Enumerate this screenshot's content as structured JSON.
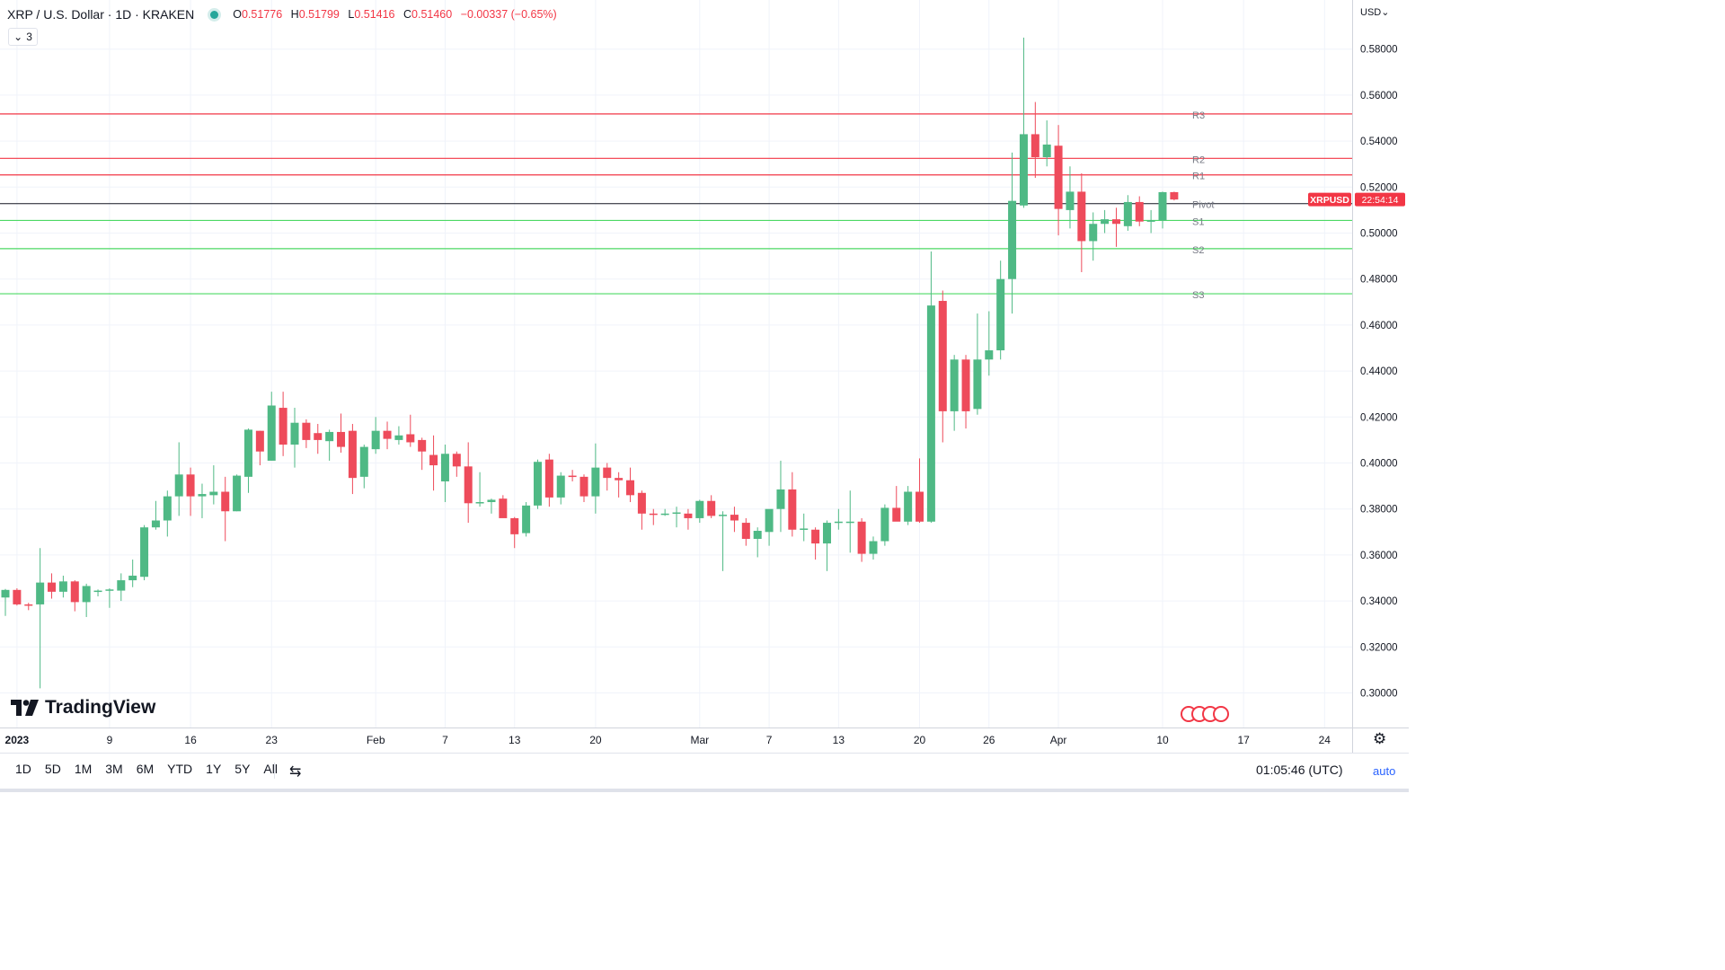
{
  "header": {
    "title": "XRP / U.S. Dollar · 1D · KRAKEN",
    "ohlc": [
      {
        "key": "O",
        "value": "0.51776"
      },
      {
        "key": "H",
        "value": "0.51799"
      },
      {
        "key": "L",
        "value": "0.51416"
      },
      {
        "key": "C",
        "value": "0.51460"
      }
    ],
    "change": "−0.00337 (−0.65%)",
    "collapse_count": "3"
  },
  "currency": "USD",
  "logo_text": "TradingView",
  "price_tag": {
    "symbol": "XRPUSD",
    "countdown": "22:54:14"
  },
  "toolbar": {
    "ranges": [
      "1D",
      "5D",
      "1M",
      "3M",
      "6M",
      "YTD",
      "1Y",
      "5Y",
      "All"
    ],
    "clock": "01:05:46 (UTC)",
    "auto_label": "auto"
  },
  "colors": {
    "up": "#4fb985",
    "down": "#ee4b5b",
    "resistance": "#f23645",
    "support": "#4cd964",
    "pivot": "#131722"
  },
  "chart_data": {
    "type": "candlestick",
    "symbol": "XRPUSD",
    "interval": "1D",
    "ylim": [
      0.29,
      0.59
    ],
    "y_ticks": [
      "0.30000",
      "0.32000",
      "0.34000",
      "0.36000",
      "0.38000",
      "0.40000",
      "0.42000",
      "0.44000",
      "0.46000",
      "0.48000",
      "0.50000",
      "0.52000",
      "0.54000",
      "0.56000",
      "0.58000"
    ],
    "x_ticks": [
      {
        "label": "2023",
        "index": 1
      },
      {
        "label": "9",
        "index": 9
      },
      {
        "label": "16",
        "index": 16
      },
      {
        "label": "23",
        "index": 23
      },
      {
        "label": "Feb",
        "index": 32
      },
      {
        "label": "7",
        "index": 38
      },
      {
        "label": "13",
        "index": 44
      },
      {
        "label": "20",
        "index": 51
      },
      {
        "label": "Mar",
        "index": 60
      },
      {
        "label": "7",
        "index": 66
      },
      {
        "label": "13",
        "index": 72
      },
      {
        "label": "20",
        "index": 79
      },
      {
        "label": "26",
        "index": 85
      },
      {
        "label": "Apr",
        "index": 91
      },
      {
        "label": "10",
        "index": 100
      },
      {
        "label": "17",
        "index": 107
      },
      {
        "label": "24",
        "index": 114
      }
    ],
    "levels": [
      {
        "name": "R3",
        "value": 0.5518,
        "kind": "resistance"
      },
      {
        "name": "R2",
        "value": 0.5325,
        "kind": "resistance"
      },
      {
        "name": "R1",
        "value": 0.5253,
        "kind": "resistance"
      },
      {
        "name": "Pivot",
        "value": 0.5128,
        "kind": "pivot"
      },
      {
        "name": "S1",
        "value": 0.5055,
        "kind": "support"
      },
      {
        "name": "S2",
        "value": 0.4932,
        "kind": "support"
      },
      {
        "name": "S3",
        "value": 0.4736,
        "kind": "support"
      }
    ],
    "candles": [
      [
        0.3415,
        0.3452,
        0.3335,
        0.3448
      ],
      [
        0.3448,
        0.3455,
        0.338,
        0.3385
      ],
      [
        0.3385,
        0.3392,
        0.336,
        0.338
      ],
      [
        0.3385,
        0.363,
        0.302,
        0.348
      ],
      [
        0.348,
        0.352,
        0.341,
        0.344
      ],
      [
        0.344,
        0.351,
        0.3415,
        0.3485
      ],
      [
        0.3485,
        0.349,
        0.3355,
        0.3395
      ],
      [
        0.3395,
        0.3475,
        0.333,
        0.3465
      ],
      [
        0.344,
        0.345,
        0.342,
        0.3445
      ],
      [
        0.3445,
        0.3455,
        0.337,
        0.345
      ],
      [
        0.3445,
        0.352,
        0.34,
        0.349
      ],
      [
        0.349,
        0.358,
        0.346,
        0.351
      ],
      [
        0.3505,
        0.373,
        0.349,
        0.372
      ],
      [
        0.372,
        0.3835,
        0.371,
        0.375
      ],
      [
        0.375,
        0.388,
        0.368,
        0.3855
      ],
      [
        0.3855,
        0.409,
        0.377,
        0.395
      ],
      [
        0.395,
        0.398,
        0.377,
        0.3855
      ],
      [
        0.3855,
        0.391,
        0.376,
        0.3865
      ],
      [
        0.386,
        0.399,
        0.382,
        0.3875
      ],
      [
        0.3875,
        0.394,
        0.366,
        0.379
      ],
      [
        0.379,
        0.395,
        0.379,
        0.3945
      ],
      [
        0.394,
        0.415,
        0.387,
        0.4145
      ],
      [
        0.414,
        0.414,
        0.399,
        0.405
      ],
      [
        0.401,
        0.431,
        0.401,
        0.425
      ],
      [
        0.424,
        0.431,
        0.403,
        0.408
      ],
      [
        0.408,
        0.424,
        0.398,
        0.4175
      ],
      [
        0.4175,
        0.419,
        0.4065,
        0.41
      ],
      [
        0.413,
        0.417,
        0.404,
        0.41
      ],
      [
        0.4095,
        0.4145,
        0.401,
        0.4135
      ],
      [
        0.4135,
        0.4215,
        0.4045,
        0.407
      ],
      [
        0.414,
        0.417,
        0.3865,
        0.3935
      ],
      [
        0.394,
        0.408,
        0.389,
        0.407
      ],
      [
        0.406,
        0.42,
        0.404,
        0.414
      ],
      [
        0.414,
        0.418,
        0.406,
        0.4105
      ],
      [
        0.41,
        0.416,
        0.408,
        0.412
      ],
      [
        0.4125,
        0.421,
        0.407,
        0.409
      ],
      [
        0.41,
        0.411,
        0.397,
        0.405
      ],
      [
        0.4035,
        0.412,
        0.388,
        0.399
      ],
      [
        0.392,
        0.408,
        0.383,
        0.404
      ],
      [
        0.404,
        0.405,
        0.394,
        0.3985
      ],
      [
        0.3985,
        0.409,
        0.374,
        0.3825
      ],
      [
        0.3825,
        0.396,
        0.381,
        0.383
      ],
      [
        0.383,
        0.3845,
        0.378,
        0.384
      ],
      [
        0.3845,
        0.386,
        0.377,
        0.376
      ],
      [
        0.376,
        0.3765,
        0.363,
        0.369
      ],
      [
        0.3695,
        0.383,
        0.368,
        0.3815
      ],
      [
        0.3815,
        0.4015,
        0.38,
        0.4005
      ],
      [
        0.4015,
        0.404,
        0.381,
        0.385
      ],
      [
        0.385,
        0.396,
        0.382,
        0.3945
      ],
      [
        0.3945,
        0.397,
        0.392,
        0.394
      ],
      [
        0.394,
        0.395,
        0.383,
        0.3855
      ],
      [
        0.3855,
        0.4085,
        0.378,
        0.398
      ],
      [
        0.398,
        0.4,
        0.388,
        0.3935
      ],
      [
        0.3935,
        0.396,
        0.385,
        0.3925
      ],
      [
        0.3925,
        0.398,
        0.383,
        0.386
      ],
      [
        0.387,
        0.388,
        0.371,
        0.378
      ],
      [
        0.378,
        0.38,
        0.373,
        0.3775
      ],
      [
        0.3775,
        0.38,
        0.377,
        0.378
      ],
      [
        0.378,
        0.381,
        0.372,
        0.3785
      ],
      [
        0.378,
        0.38,
        0.371,
        0.376
      ],
      [
        0.376,
        0.384,
        0.374,
        0.3835
      ],
      [
        0.3835,
        0.386,
        0.376,
        0.377
      ],
      [
        0.377,
        0.379,
        0.353,
        0.3775
      ],
      [
        0.3775,
        0.381,
        0.37,
        0.375
      ],
      [
        0.374,
        0.376,
        0.364,
        0.367
      ],
      [
        0.367,
        0.372,
        0.359,
        0.3705
      ],
      [
        0.37,
        0.379,
        0.364,
        0.38
      ],
      [
        0.38,
        0.401,
        0.37,
        0.3885
      ],
      [
        0.3885,
        0.396,
        0.368,
        0.371
      ],
      [
        0.371,
        0.378,
        0.366,
        0.3715
      ],
      [
        0.371,
        0.372,
        0.358,
        0.365
      ],
      [
        0.365,
        0.375,
        0.353,
        0.374
      ],
      [
        0.374,
        0.38,
        0.371,
        0.3745
      ],
      [
        0.374,
        0.388,
        0.361,
        0.3745
      ],
      [
        0.3745,
        0.376,
        0.357,
        0.3605
      ],
      [
        0.3605,
        0.368,
        0.358,
        0.366
      ],
      [
        0.366,
        0.382,
        0.364,
        0.3805
      ],
      [
        0.3805,
        0.39,
        0.377,
        0.3745
      ],
      [
        0.3745,
        0.39,
        0.373,
        0.3875
      ],
      [
        0.3875,
        0.402,
        0.374,
        0.3745
      ],
      [
        0.3745,
        0.492,
        0.374,
        0.4685
      ],
      [
        0.4705,
        0.475,
        0.409,
        0.4225
      ],
      [
        0.4225,
        0.447,
        0.414,
        0.445
      ],
      [
        0.445,
        0.447,
        0.415,
        0.4225
      ],
      [
        0.4235,
        0.465,
        0.421,
        0.445
      ],
      [
        0.445,
        0.466,
        0.438,
        0.449
      ],
      [
        0.449,
        0.488,
        0.445,
        0.48
      ],
      [
        0.48,
        0.535,
        0.465,
        0.514
      ],
      [
        0.512,
        0.585,
        0.511,
        0.543
      ],
      [
        0.543,
        0.557,
        0.524,
        0.533
      ],
      [
        0.533,
        0.549,
        0.529,
        0.5385
      ],
      [
        0.538,
        0.547,
        0.499,
        0.5105
      ],
      [
        0.51,
        0.529,
        0.502,
        0.518
      ],
      [
        0.518,
        0.526,
        0.483,
        0.4965
      ],
      [
        0.4965,
        0.509,
        0.488,
        0.504
      ],
      [
        0.504,
        0.51,
        0.5,
        0.506
      ],
      [
        0.506,
        0.511,
        0.494,
        0.504
      ],
      [
        0.503,
        0.5165,
        0.501,
        0.5135
      ],
      [
        0.5135,
        0.516,
        0.503,
        0.505
      ],
      [
        0.505,
        0.51,
        0.5,
        0.5055
      ],
      [
        0.5055,
        0.518,
        0.502,
        0.5178
      ],
      [
        0.5178,
        0.518,
        0.5142,
        0.5146
      ]
    ]
  }
}
